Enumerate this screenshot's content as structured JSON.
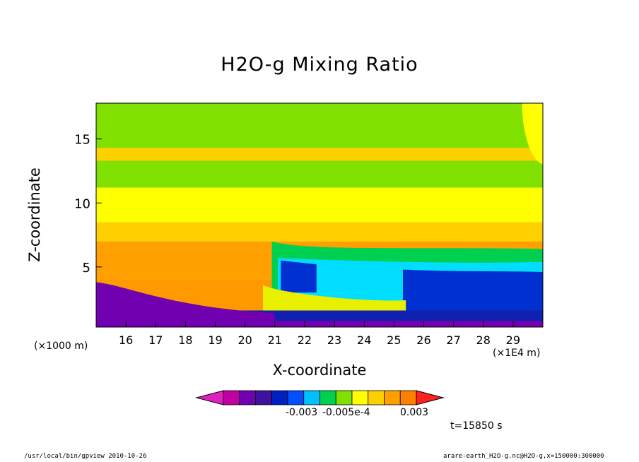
{
  "chart_data": {
    "type": "heatmap",
    "title": "H2O-g Mixing Ratio",
    "xlabel": "X-coordinate",
    "ylabel": "Z-coordinate",
    "x_unit_note": "(×1000 m)",
    "x_scale_note": "(×1E4 m)",
    "x_ticks": [
      "16",
      "17",
      "18",
      "19",
      "20",
      "21",
      "22",
      "23",
      "24",
      "25",
      "26",
      "27",
      "28",
      "29"
    ],
    "y_ticks": [
      "5",
      "10",
      "15"
    ],
    "xlim": [
      15,
      30
    ],
    "ylim": [
      0.3,
      17.8
    ],
    "colorbar": {
      "colors": [
        "#c000a0",
        "#7000b0",
        "#4010a0",
        "#0020c0",
        "#0050ff",
        "#00c0ff",
        "#00d050",
        "#80e000",
        "#ffff00",
        "#ffd000",
        "#ffa000",
        "#ff8000"
      ],
      "labels": [
        "-0.003",
        "-0.005e-4",
        "0.003"
      ]
    },
    "bands": [
      {
        "z": [
          0.3,
          1.5
        ],
        "color": "#7000b0"
      },
      {
        "z": [
          1.5,
          4.0
        ],
        "color": "#ff9900"
      },
      {
        "z": [
          4.0,
          7.0
        ],
        "color": "#ffa000"
      },
      {
        "z": [
          7.0,
          8.5
        ],
        "color": "#ffd000"
      },
      {
        "z": [
          8.5,
          11.2
        ],
        "color": "#ffff00"
      },
      {
        "z": [
          11.2,
          13.3
        ],
        "color": "#80e000"
      },
      {
        "z": [
          13.3,
          14.3
        ],
        "color": "#ffd000"
      },
      {
        "z": [
          14.3,
          17.8
        ],
        "color": "#80e000"
      }
    ]
  },
  "time_label": "t=15850 s",
  "footer_left": "/usr/local/bin/gpview  2010-10-26",
  "footer_right": "arare-earth_H2O-g.nc@H2O-g,x=150000:300000"
}
